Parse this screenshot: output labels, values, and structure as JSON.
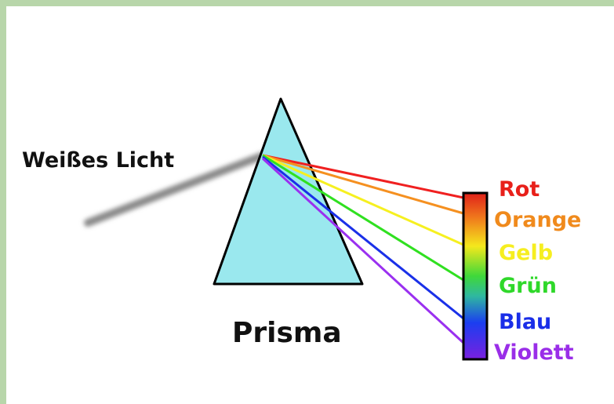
{
  "light_label": "Weißes Licht",
  "prism_label": "Prisma",
  "spectrum": [
    "Rot",
    "Orange",
    "Gelb",
    "Grün",
    "Blau",
    "Violett"
  ]
}
